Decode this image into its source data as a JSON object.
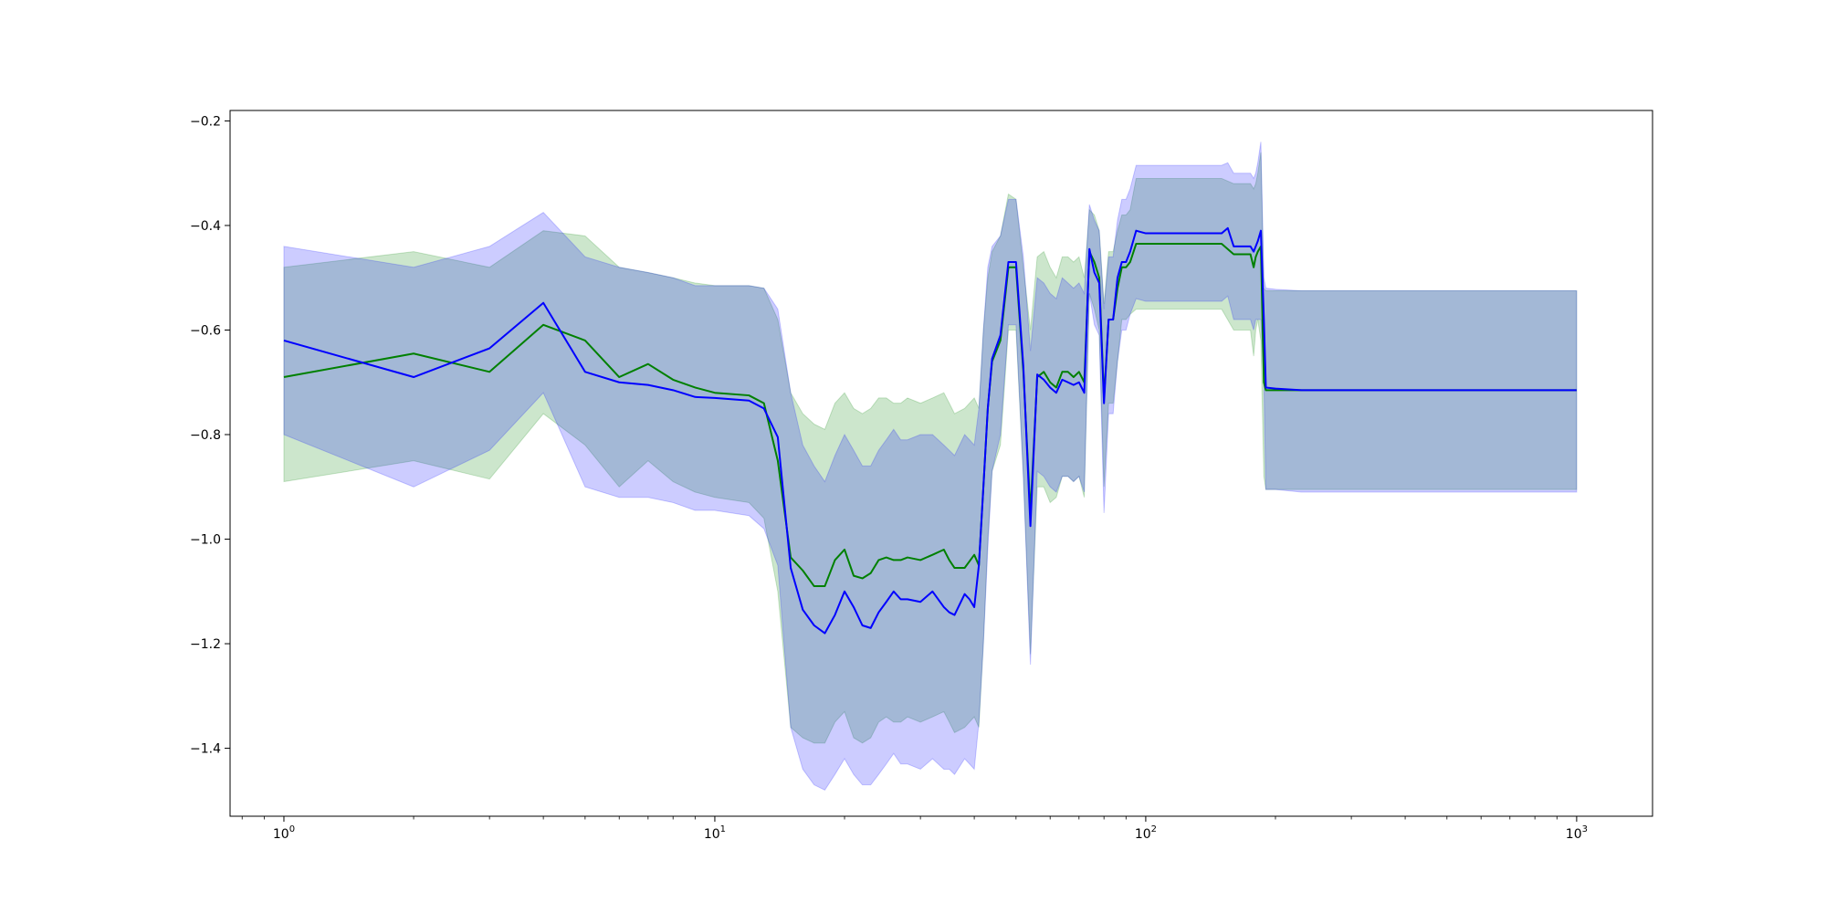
{
  "chart_data": {
    "type": "line",
    "title": "",
    "xlabel": "",
    "ylabel": "",
    "xscale": "log",
    "xlim": [
      0.75,
      1500
    ],
    "ylim": [
      -1.53,
      -0.18
    ],
    "grid": false,
    "legend": "none",
    "xticks": [
      {
        "base": "10",
        "exp": "0",
        "value": 1
      },
      {
        "base": "10",
        "exp": "1",
        "value": 10
      },
      {
        "base": "10",
        "exp": "2",
        "value": 100
      },
      {
        "base": "10",
        "exp": "3",
        "value": 1000
      }
    ],
    "yticks": [
      {
        "label": "−0.2",
        "value": -0.2
      },
      {
        "label": "−0.4",
        "value": -0.4
      },
      {
        "label": "−0.6",
        "value": -0.6
      },
      {
        "label": "−0.8",
        "value": -0.8
      },
      {
        "label": "−1.0",
        "value": -1.0
      },
      {
        "label": "−1.2",
        "value": -1.2
      },
      {
        "label": "−1.4",
        "value": -1.4
      }
    ],
    "series": [
      {
        "color": "#008000",
        "band_color": "#008000",
        "x": [
          1,
          2,
          3,
          4,
          5,
          6,
          7,
          8,
          9,
          10,
          12,
          13,
          14,
          15,
          16,
          17,
          18,
          19,
          20,
          21,
          22,
          23,
          24,
          25,
          26,
          27,
          28,
          30,
          32,
          34,
          35,
          36,
          38,
          40,
          41,
          42,
          43,
          44,
          46,
          48,
          50,
          52,
          54,
          56,
          58,
          60,
          62,
          64,
          66,
          68,
          70,
          72,
          74,
          76,
          78,
          80,
          82,
          84,
          86,
          88,
          90,
          92,
          95,
          100,
          120,
          150,
          160,
          170,
          175,
          178,
          180,
          182,
          185,
          188,
          190,
          200,
          230,
          500,
          1000
        ],
        "y": [
          -0.69,
          -0.645,
          -0.68,
          -0.59,
          -0.62,
          -0.69,
          -0.665,
          -0.695,
          -0.71,
          -0.72,
          -0.725,
          -0.74,
          -0.85,
          -1.035,
          -1.06,
          -1.09,
          -1.09,
          -1.04,
          -1.02,
          -1.07,
          -1.075,
          -1.065,
          -1.04,
          -1.035,
          -1.04,
          -1.04,
          -1.035,
          -1.04,
          -1.03,
          -1.02,
          -1.04,
          -1.055,
          -1.055,
          -1.03,
          -1.05,
          -0.9,
          -0.75,
          -0.66,
          -0.62,
          -0.48,
          -0.48,
          -0.68,
          -0.95,
          -0.69,
          -0.68,
          -0.7,
          -0.71,
          -0.68,
          -0.68,
          -0.69,
          -0.68,
          -0.7,
          -0.45,
          -0.47,
          -0.5,
          -0.73,
          -0.58,
          -0.58,
          -0.52,
          -0.48,
          -0.48,
          -0.47,
          -0.435,
          -0.435,
          -0.435,
          -0.435,
          -0.455,
          -0.455,
          -0.455,
          -0.48,
          -0.46,
          -0.45,
          -0.44,
          -0.7,
          -0.715,
          -0.715,
          -0.715,
          -0.715,
          -0.715
        ],
        "upper": [
          -0.48,
          -0.45,
          -0.48,
          -0.41,
          -0.42,
          -0.48,
          -0.49,
          -0.5,
          -0.51,
          -0.515,
          -0.515,
          -0.52,
          -0.58,
          -0.72,
          -0.76,
          -0.78,
          -0.79,
          -0.74,
          -0.72,
          -0.75,
          -0.76,
          -0.75,
          -0.73,
          -0.73,
          -0.74,
          -0.74,
          -0.73,
          -0.74,
          -0.73,
          -0.72,
          -0.74,
          -0.76,
          -0.75,
          -0.73,
          -0.75,
          -0.6,
          -0.5,
          -0.45,
          -0.42,
          -0.34,
          -0.35,
          -0.48,
          -0.6,
          -0.46,
          -0.45,
          -0.48,
          -0.5,
          -0.46,
          -0.46,
          -0.47,
          -0.46,
          -0.5,
          -0.37,
          -0.38,
          -0.41,
          -0.55,
          -0.45,
          -0.45,
          -0.41,
          -0.38,
          -0.38,
          -0.37,
          -0.31,
          -0.31,
          -0.31,
          -0.31,
          -0.32,
          -0.32,
          -0.32,
          -0.33,
          -0.32,
          -0.3,
          -0.26,
          -0.52,
          -0.525,
          -0.525,
          -0.525,
          -0.525,
          -0.525
        ],
        "lower": [
          -0.89,
          -0.85,
          -0.885,
          -0.76,
          -0.82,
          -0.9,
          -0.85,
          -0.89,
          -0.91,
          -0.92,
          -0.93,
          -0.96,
          -1.1,
          -1.36,
          -1.38,
          -1.39,
          -1.39,
          -1.35,
          -1.33,
          -1.38,
          -1.39,
          -1.38,
          -1.35,
          -1.34,
          -1.35,
          -1.35,
          -1.34,
          -1.35,
          -1.34,
          -1.33,
          -1.35,
          -1.37,
          -1.36,
          -1.34,
          -1.36,
          -1.2,
          -1.0,
          -0.87,
          -0.82,
          -0.6,
          -0.6,
          -0.88,
          -1.22,
          -0.9,
          -0.9,
          -0.93,
          -0.92,
          -0.88,
          -0.88,
          -0.89,
          -0.88,
          -0.92,
          -0.53,
          -0.56,
          -0.6,
          -0.9,
          -0.74,
          -0.74,
          -0.66,
          -0.58,
          -0.58,
          -0.57,
          -0.56,
          -0.56,
          -0.56,
          -0.56,
          -0.6,
          -0.6,
          -0.6,
          -0.65,
          -0.6,
          -0.58,
          -0.62,
          -0.88,
          -0.905,
          -0.905,
          -0.905,
          -0.905,
          -0.905
        ]
      },
      {
        "color": "#0000ff",
        "band_color": "#0000ff",
        "x": [
          1,
          2,
          3,
          4,
          5,
          6,
          7,
          8,
          9,
          10,
          12,
          13,
          14,
          15,
          16,
          17,
          18,
          19,
          20,
          21,
          22,
          23,
          24,
          25,
          26,
          27,
          28,
          30,
          32,
          34,
          35,
          36,
          38,
          39,
          40,
          41,
          42,
          43,
          44,
          46,
          48,
          50,
          52,
          54,
          56,
          58,
          60,
          62,
          64,
          66,
          68,
          70,
          72,
          74,
          76,
          78,
          80,
          82,
          84,
          86,
          88,
          90,
          92,
          95,
          100,
          120,
          150,
          155,
          160,
          170,
          175,
          178,
          180,
          182,
          185,
          188,
          190,
          200,
          230,
          500,
          1000
        ],
        "y": [
          -0.62,
          -0.69,
          -0.635,
          -0.548,
          -0.68,
          -0.7,
          -0.705,
          -0.715,
          -0.728,
          -0.73,
          -0.735,
          -0.75,
          -0.805,
          -1.055,
          -1.135,
          -1.165,
          -1.18,
          -1.145,
          -1.1,
          -1.13,
          -1.165,
          -1.17,
          -1.14,
          -1.12,
          -1.1,
          -1.115,
          -1.115,
          -1.12,
          -1.1,
          -1.13,
          -1.14,
          -1.145,
          -1.105,
          -1.115,
          -1.13,
          -1.05,
          -0.9,
          -0.75,
          -0.655,
          -0.61,
          -0.47,
          -0.47,
          -0.67,
          -0.975,
          -0.685,
          -0.695,
          -0.71,
          -0.72,
          -0.695,
          -0.7,
          -0.705,
          -0.7,
          -0.72,
          -0.445,
          -0.49,
          -0.51,
          -0.74,
          -0.58,
          -0.58,
          -0.5,
          -0.47,
          -0.47,
          -0.45,
          -0.41,
          -0.415,
          -0.415,
          -0.415,
          -0.405,
          -0.44,
          -0.44,
          -0.44,
          -0.45,
          -0.44,
          -0.43,
          -0.41,
          -0.58,
          -0.71,
          -0.712,
          -0.715,
          -0.715,
          -0.715
        ],
        "upper": [
          -0.44,
          -0.48,
          -0.44,
          -0.375,
          -0.46,
          -0.48,
          -0.49,
          -0.5,
          -0.515,
          -0.515,
          -0.515,
          -0.52,
          -0.56,
          -0.72,
          -0.82,
          -0.86,
          -0.89,
          -0.84,
          -0.8,
          -0.83,
          -0.86,
          -0.86,
          -0.83,
          -0.81,
          -0.79,
          -0.81,
          -0.81,
          -0.8,
          -0.8,
          -0.82,
          -0.83,
          -0.84,
          -0.8,
          -0.81,
          -0.82,
          -0.75,
          -0.6,
          -0.48,
          -0.44,
          -0.42,
          -0.35,
          -0.35,
          -0.46,
          -0.64,
          -0.5,
          -0.51,
          -0.53,
          -0.54,
          -0.5,
          -0.51,
          -0.52,
          -0.51,
          -0.53,
          -0.36,
          -0.39,
          -0.41,
          -0.56,
          -0.46,
          -0.46,
          -0.39,
          -0.35,
          -0.35,
          -0.33,
          -0.285,
          -0.285,
          -0.285,
          -0.285,
          -0.28,
          -0.3,
          -0.3,
          -0.3,
          -0.31,
          -0.3,
          -0.28,
          -0.24,
          -0.5,
          -0.52,
          -0.522,
          -0.525,
          -0.525,
          -0.525
        ],
        "lower": [
          -0.8,
          -0.9,
          -0.83,
          -0.72,
          -0.9,
          -0.92,
          -0.92,
          -0.93,
          -0.945,
          -0.945,
          -0.955,
          -0.98,
          -1.05,
          -1.36,
          -1.44,
          -1.47,
          -1.48,
          -1.45,
          -1.42,
          -1.45,
          -1.47,
          -1.47,
          -1.45,
          -1.43,
          -1.41,
          -1.43,
          -1.43,
          -1.44,
          -1.42,
          -1.44,
          -1.44,
          -1.45,
          -1.42,
          -1.43,
          -1.44,
          -1.35,
          -1.2,
          -1.02,
          -0.87,
          -0.8,
          -0.59,
          -0.59,
          -0.88,
          -1.24,
          -0.87,
          -0.88,
          -0.9,
          -0.91,
          -0.88,
          -0.88,
          -0.89,
          -0.88,
          -0.91,
          -0.53,
          -0.59,
          -0.61,
          -0.95,
          -0.76,
          -0.76,
          -0.66,
          -0.6,
          -0.6,
          -0.57,
          -0.54,
          -0.545,
          -0.545,
          -0.545,
          -0.535,
          -0.58,
          -0.58,
          -0.58,
          -0.6,
          -0.58,
          -0.58,
          -0.58,
          -0.7,
          -0.905,
          -0.905,
          -0.91,
          -0.91,
          -0.91
        ]
      }
    ]
  }
}
